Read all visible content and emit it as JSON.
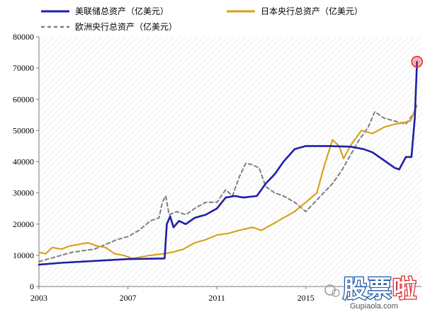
{
  "chart_data": {
    "type": "line",
    "legend": [
      {
        "label": "美联储总资产（亿美元）",
        "color": "#1f1fa8",
        "dash": "solid"
      },
      {
        "label": "日本央行总资产（亿美元）",
        "color": "#d4a017",
        "dash": "solid"
      },
      {
        "label": "欧洲央行总资产（亿美元）",
        "color": "#7f7f7f",
        "dash": "dashed"
      }
    ],
    "legend_position": "top-left",
    "x_ticks": [
      "2003",
      "2007",
      "2011",
      "2015"
    ],
    "xlim": [
      2003,
      2020.2
    ],
    "ylim": [
      0,
      80000
    ],
    "y_ticks": [
      "0",
      "10000",
      "20000",
      "30000",
      "40000",
      "50000",
      "60000",
      "70000",
      "80000"
    ],
    "grid": false,
    "series": [
      {
        "name": "美联储总资产（亿美元）",
        "color": "#1f1fa8",
        "points": [
          [
            2003.0,
            7000
          ],
          [
            2004.0,
            7600
          ],
          [
            2005.0,
            8000
          ],
          [
            2006.0,
            8400
          ],
          [
            2007.0,
            8800
          ],
          [
            2008.0,
            8900
          ],
          [
            2008.65,
            9000
          ],
          [
            2008.75,
            20000
          ],
          [
            2008.9,
            22500
          ],
          [
            2009.05,
            19000
          ],
          [
            2009.3,
            21000
          ],
          [
            2009.6,
            20000
          ],
          [
            2010.0,
            22000
          ],
          [
            2010.5,
            23000
          ],
          [
            2011.0,
            25000
          ],
          [
            2011.4,
            28500
          ],
          [
            2011.8,
            29000
          ],
          [
            2012.2,
            28500
          ],
          [
            2012.8,
            29000
          ],
          [
            2013.2,
            33000
          ],
          [
            2013.6,
            36000
          ],
          [
            2014.0,
            40000
          ],
          [
            2014.5,
            44000
          ],
          [
            2015.0,
            45000
          ],
          [
            2016.0,
            45000
          ],
          [
            2017.0,
            44800
          ],
          [
            2017.6,
            44000
          ],
          [
            2018.0,
            43000
          ],
          [
            2018.6,
            40000
          ],
          [
            2019.0,
            38000
          ],
          [
            2019.2,
            37500
          ],
          [
            2019.5,
            41500
          ],
          [
            2019.75,
            41500
          ],
          [
            2019.9,
            54000
          ],
          [
            2020.0,
            72000
          ]
        ]
      },
      {
        "name": "日本央行总资产（亿美元）",
        "color": "#d4a017",
        "points": [
          [
            2003.0,
            11000
          ],
          [
            2003.3,
            10500
          ],
          [
            2003.6,
            12500
          ],
          [
            2004.0,
            12000
          ],
          [
            2004.4,
            13000
          ],
          [
            2004.8,
            13500
          ],
          [
            2005.2,
            14000
          ],
          [
            2005.6,
            13000
          ],
          [
            2006.0,
            12500
          ],
          [
            2006.4,
            10500
          ],
          [
            2006.8,
            10000
          ],
          [
            2007.2,
            9000
          ],
          [
            2007.6,
            9500
          ],
          [
            2008.0,
            10000
          ],
          [
            2008.6,
            10500
          ],
          [
            2009.0,
            11000
          ],
          [
            2009.5,
            12000
          ],
          [
            2010.0,
            14000
          ],
          [
            2010.5,
            15000
          ],
          [
            2011.0,
            16500
          ],
          [
            2011.5,
            17000
          ],
          [
            2012.0,
            18000
          ],
          [
            2012.6,
            19000
          ],
          [
            2013.0,
            18000
          ],
          [
            2013.5,
            20000
          ],
          [
            2014.0,
            22000
          ],
          [
            2014.5,
            24000
          ],
          [
            2015.0,
            27000
          ],
          [
            2015.5,
            30000
          ],
          [
            2015.8,
            38000
          ],
          [
            2016.2,
            47000
          ],
          [
            2016.5,
            45000
          ],
          [
            2016.7,
            41000
          ],
          [
            2017.0,
            45000
          ],
          [
            2017.5,
            50000
          ],
          [
            2018.0,
            49000
          ],
          [
            2018.5,
            51000
          ],
          [
            2019.0,
            52000
          ],
          [
            2019.4,
            52500
          ],
          [
            2019.7,
            53000
          ],
          [
            2020.0,
            58000
          ]
        ]
      },
      {
        "name": "欧洲央行总资产（亿美元）",
        "color": "#7f7f7f",
        "points": [
          [
            2003.0,
            8000
          ],
          [
            2003.5,
            9000
          ],
          [
            2004.0,
            10000
          ],
          [
            2004.5,
            11000
          ],
          [
            2005.0,
            11500
          ],
          [
            2005.5,
            12000
          ],
          [
            2006.0,
            13500
          ],
          [
            2006.5,
            15000
          ],
          [
            2007.0,
            16000
          ],
          [
            2007.5,
            18000
          ],
          [
            2008.0,
            21000
          ],
          [
            2008.4,
            22000
          ],
          [
            2008.55,
            27000
          ],
          [
            2008.7,
            29000
          ],
          [
            2008.85,
            23000
          ],
          [
            2009.2,
            24000
          ],
          [
            2009.6,
            23000
          ],
          [
            2010.0,
            25000
          ],
          [
            2010.5,
            27000
          ],
          [
            2011.0,
            27000
          ],
          [
            2011.4,
            31000
          ],
          [
            2011.7,
            29000
          ],
          [
            2012.0,
            35000
          ],
          [
            2012.3,
            39500
          ],
          [
            2012.6,
            39000
          ],
          [
            2012.9,
            38000
          ],
          [
            2013.2,
            32000
          ],
          [
            2013.6,
            30000
          ],
          [
            2014.0,
            29000
          ],
          [
            2014.5,
            27000
          ],
          [
            2015.0,
            24000
          ],
          [
            2015.4,
            27000
          ],
          [
            2015.8,
            30000
          ],
          [
            2016.2,
            33000
          ],
          [
            2016.6,
            37000
          ],
          [
            2017.0,
            42000
          ],
          [
            2017.4,
            47000
          ],
          [
            2017.8,
            51000
          ],
          [
            2018.1,
            56000
          ],
          [
            2018.5,
            54000
          ],
          [
            2019.0,
            53000
          ],
          [
            2019.5,
            52000
          ],
          [
            2020.0,
            57000
          ]
        ]
      }
    ],
    "highlight": {
      "x": 2020.0,
      "y": 72000,
      "color": "#e8303a"
    }
  },
  "watermark": {
    "text_1": "股",
    "text_2": "票",
    "text_3": "啦",
    "site": "Gupiaola.com"
  }
}
